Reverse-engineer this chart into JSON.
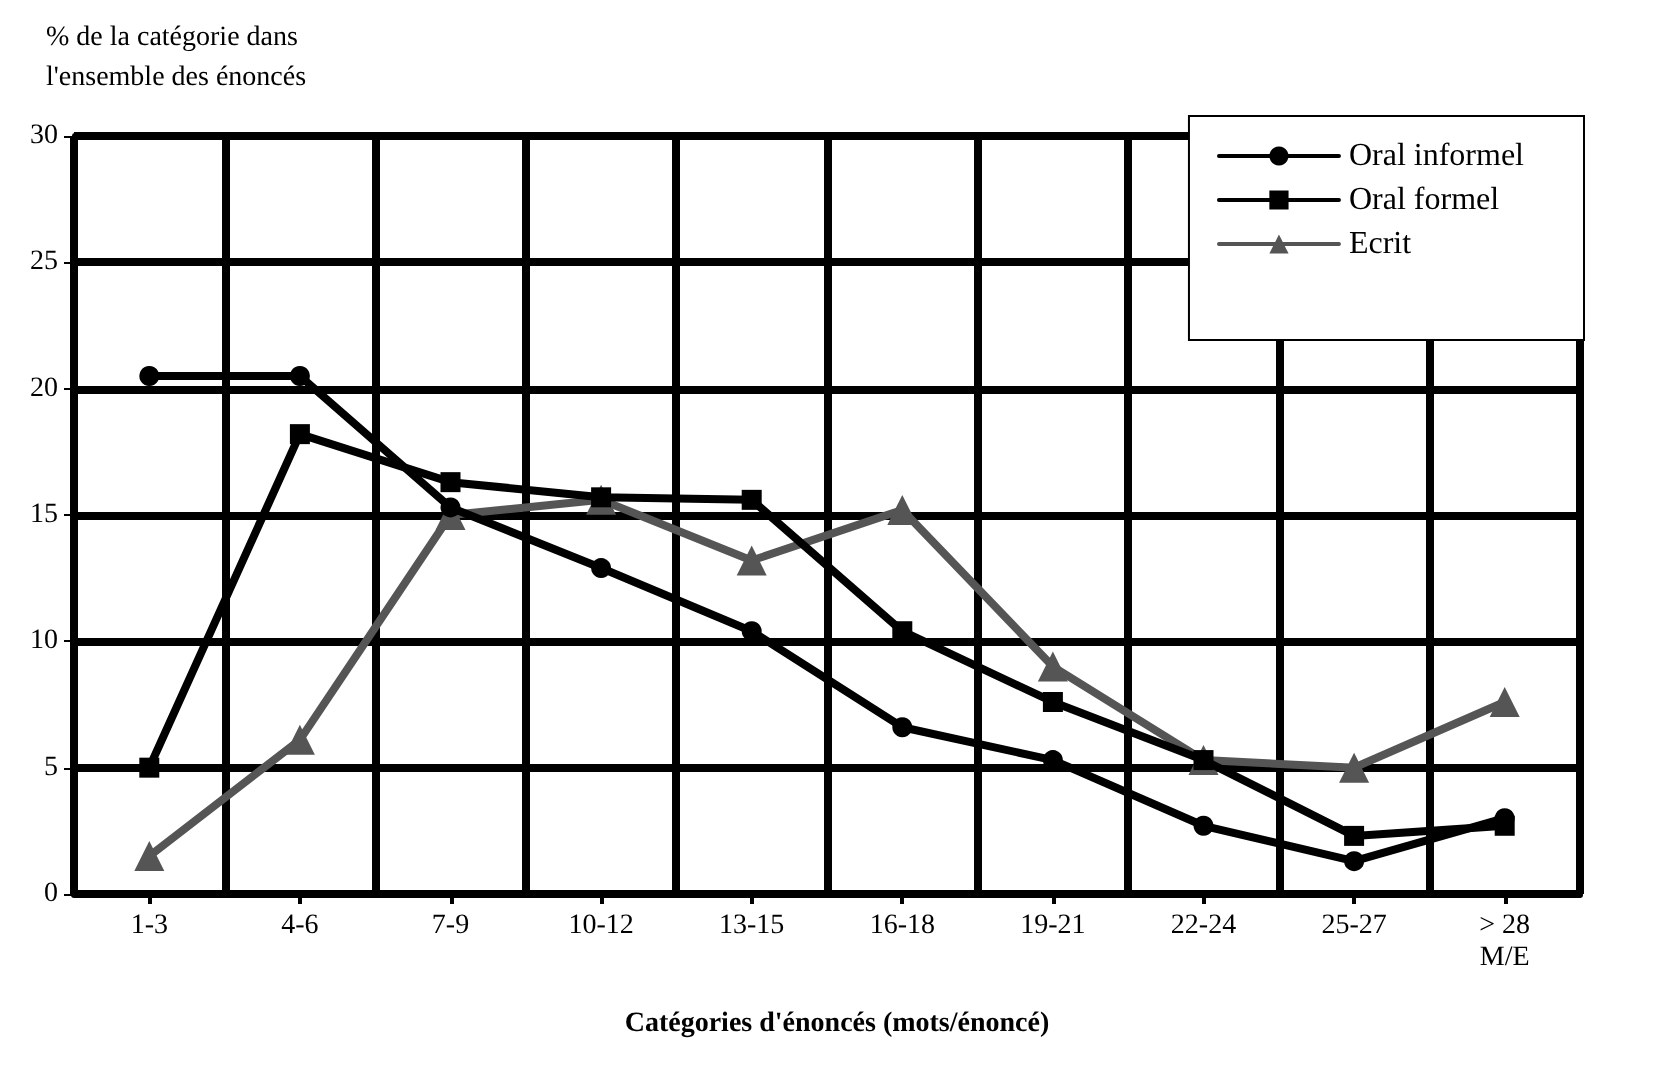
{
  "chart_data": {
    "type": "line",
    "ylabel": "% de la catégorie dans\nl'ensemble des énoncés",
    "xlabel": "Catégories d'énoncés (mots/énoncé)",
    "categories": [
      "1-3",
      "4-6",
      "7-9",
      "10-12",
      "13-15",
      "16-18",
      "19-21",
      "22-24",
      "25-27",
      "> 28\nM/E"
    ],
    "series": [
      {
        "name": "Oral informel",
        "color": "#000000",
        "marker": "circle",
        "values": [
          20.5,
          20.5,
          15.3,
          12.9,
          10.4,
          6.6,
          5.3,
          2.7,
          1.3,
          3.0
        ]
      },
      {
        "name": "Oral formel",
        "color": "#000000",
        "marker": "square",
        "values": [
          5.0,
          18.2,
          16.3,
          15.7,
          15.6,
          10.4,
          7.6,
          5.3,
          2.3,
          2.7
        ]
      },
      {
        "name": "Ecrit",
        "color": "#555555",
        "marker": "triangle",
        "values": [
          1.5,
          6.1,
          15.0,
          15.6,
          13.2,
          15.2,
          9.0,
          5.3,
          5.0,
          7.6
        ]
      }
    ],
    "ylim": [
      0,
      30
    ],
    "yticks": [
      0,
      5,
      10,
      15,
      20,
      25,
      30
    ],
    "grid": true,
    "legend": "top right",
    "line_style": "solid"
  }
}
